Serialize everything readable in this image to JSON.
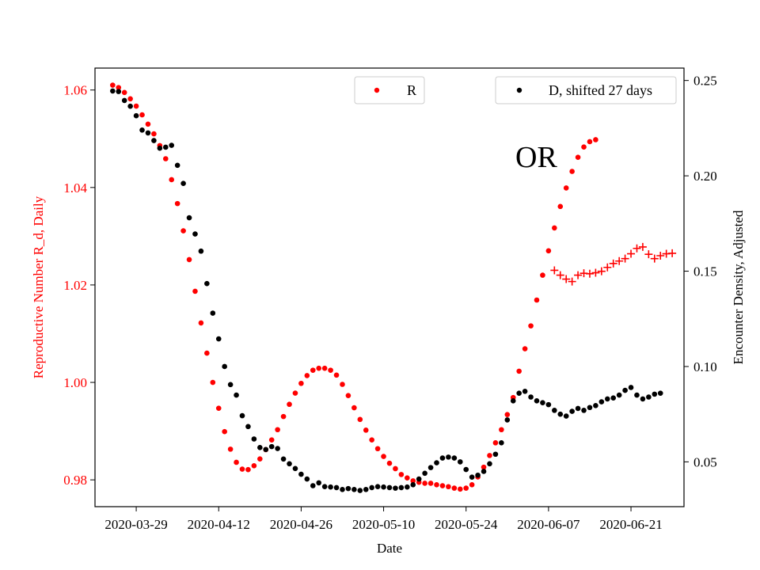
{
  "chart_data": {
    "type": "scatter",
    "xlabel": "Date",
    "ylabel_left": "Reproductive Number R_d, Daily",
    "ylabel_right": "Encounter Density, Adjusted",
    "xlim": [
      "2020-03-22",
      "2020-06-30"
    ],
    "ylim_left": [
      0.9745,
      1.0645
    ],
    "ylim_right": [
      0.0265,
      0.2565
    ],
    "x_ticks": [
      "2020-03-29",
      "2020-04-12",
      "2020-04-26",
      "2020-05-10",
      "2020-05-24",
      "2020-06-07",
      "2020-06-21"
    ],
    "y_ticks_left": [
      "0.98",
      "1.00",
      "1.02",
      "1.04",
      "1.06"
    ],
    "y_ticks_right": [
      "0.05",
      "0.10",
      "0.15",
      "0.20",
      "0.25"
    ],
    "colors": {
      "R": "#ff0000",
      "D": "#000000",
      "left_axis": "#ff0000"
    },
    "grid": false,
    "legends": [
      {
        "label": "R",
        "color": "#ff0000",
        "marker": "dot",
        "placement": "upper-center"
      },
      {
        "label": "D, shifted 27 days",
        "color": "#000000",
        "marker": "dot",
        "placement": "upper-right"
      }
    ],
    "annotations": [
      {
        "text": "OR",
        "x": "2020-06-01",
        "y": 1.0465
      }
    ],
    "series": [
      {
        "name": "R",
        "axis": "left",
        "marker": "dot",
        "color": "#ff0000",
        "start": "2020-03-25",
        "values": [
          1.061,
          1.0605,
          1.0595,
          1.0582,
          1.0567,
          1.0549,
          1.053,
          1.051,
          1.0486,
          1.0459,
          1.0416,
          1.0367,
          1.0311,
          1.0252,
          1.0187,
          1.0122,
          1.006,
          1.0,
          0.9947,
          0.9899,
          0.9863,
          0.9836,
          0.9822,
          0.9821,
          0.9829,
          0.9843,
          0.9862,
          0.9882,
          0.9903,
          0.993,
          0.9955,
          0.9978,
          0.9998,
          1.0014,
          1.0025,
          1.0029,
          1.0029,
          1.0025,
          1.0015,
          0.9996,
          0.9973,
          0.9948,
          0.9924,
          0.9902,
          0.9882,
          0.9864,
          0.9848,
          0.9834,
          0.9823,
          0.9811,
          0.9804,
          0.9798,
          0.9795,
          0.9793,
          0.9793,
          0.979,
          0.9788,
          0.9786,
          0.9783,
          0.9781,
          0.9783,
          0.979,
          0.9806,
          0.9826,
          0.985,
          0.9876,
          0.9903,
          0.9934,
          0.9969,
          1.0023,
          1.0069,
          1.0116,
          1.0169,
          1.022,
          1.027,
          1.0317,
          1.0361,
          1.0399,
          1.0433,
          1.0462,
          1.0483,
          1.0494,
          1.0498
        ]
      },
      {
        "name": "R (later)",
        "axis": "left",
        "marker": "plus",
        "color": "#ff0000",
        "start": "2020-06-08",
        "values": [
          1.023,
          1.022,
          1.0212,
          1.0207,
          1.022,
          1.0224,
          1.0223,
          1.0225,
          1.0228,
          1.0236,
          1.0244,
          1.0249,
          1.0254,
          1.0264,
          1.0275,
          1.0278,
          1.0263,
          1.0254,
          1.026,
          1.0264,
          1.0265
        ]
      },
      {
        "name": "D, shifted 27 days",
        "axis": "right",
        "marker": "dot",
        "color": "#000000",
        "start": "2020-03-25",
        "values": [
          0.2445,
          0.2442,
          0.2395,
          0.2365,
          0.2315,
          0.224,
          0.2225,
          0.2185,
          0.2145,
          0.215,
          0.216,
          0.2055,
          0.196,
          0.178,
          0.1695,
          0.1605,
          0.1435,
          0.128,
          0.1145,
          0.1,
          0.0905,
          0.085,
          0.0742,
          0.0685,
          0.062,
          0.0575,
          0.0565,
          0.058,
          0.057,
          0.0515,
          0.049,
          0.0465,
          0.0435,
          0.041,
          0.0375,
          0.039,
          0.037,
          0.0368,
          0.0365,
          0.0355,
          0.036,
          0.0355,
          0.035,
          0.0355,
          0.0365,
          0.037,
          0.0368,
          0.0365,
          0.0362,
          0.0365,
          0.0368,
          0.038,
          0.041,
          0.044,
          0.047,
          0.0495,
          0.052,
          0.0525,
          0.052,
          0.05,
          0.046,
          0.042,
          0.043,
          0.045,
          0.049,
          0.054,
          0.06,
          0.072,
          0.082,
          0.086,
          0.087,
          0.084,
          0.082,
          0.081,
          0.08,
          0.077,
          0.075,
          0.074,
          0.0765,
          0.078,
          0.077,
          0.0785,
          0.0795,
          0.0815,
          0.083,
          0.0835,
          0.085,
          0.0875,
          0.089,
          0.085,
          0.083,
          0.084,
          0.0855,
          0.086
        ]
      }
    ]
  }
}
